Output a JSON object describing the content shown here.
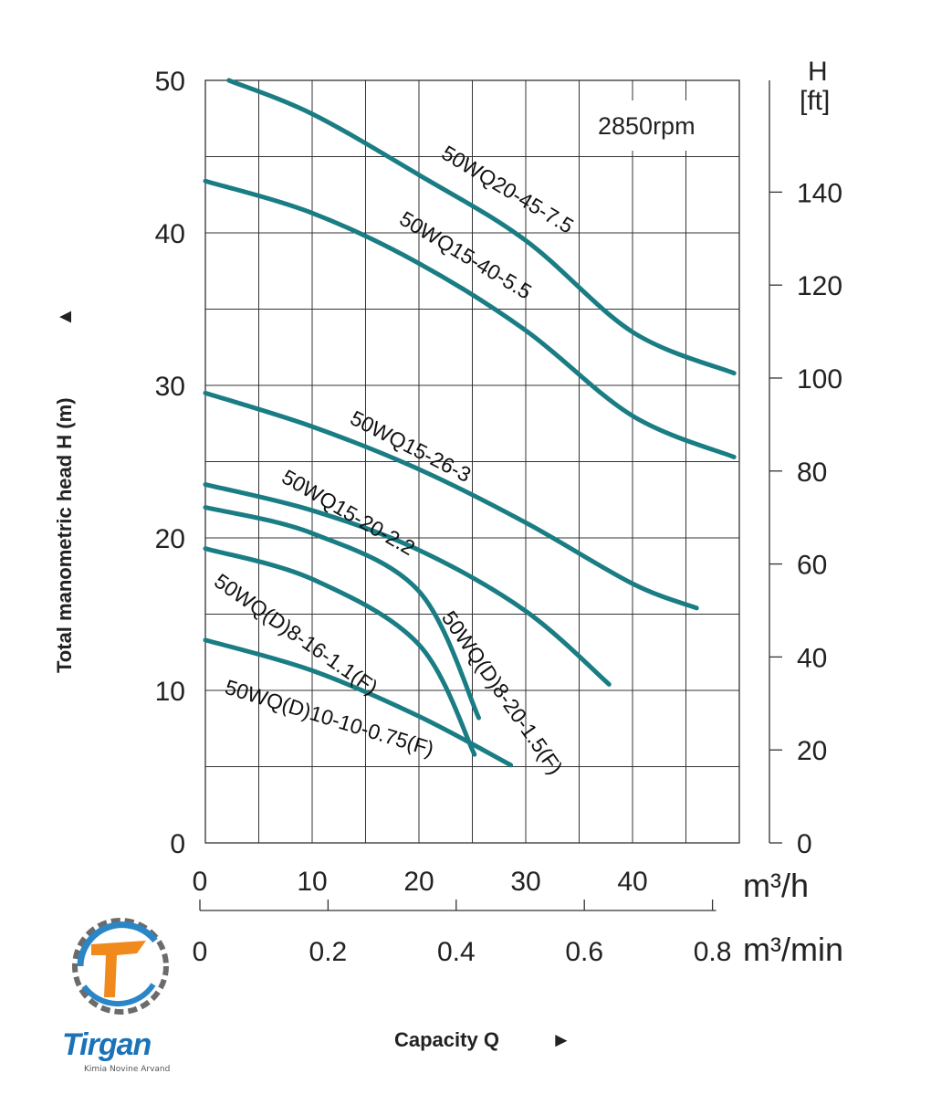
{
  "chart_data": {
    "type": "line",
    "rpm_label": "2850rpm",
    "ylabel": "Total manometric head H (m)",
    "ylabel_arrow": "▲",
    "xlabel": "Capacity Q",
    "xlabel_arrow": "►",
    "ylim": [
      0,
      50
    ],
    "xlim": [
      0,
      50
    ],
    "y_ticks": [
      "0",
      "10",
      "20",
      "30",
      "40",
      "50"
    ],
    "x_ticks": [
      "0",
      "10",
      "20",
      "30",
      "40"
    ],
    "x_unit": "m³/h",
    "y2_title": "H",
    "y2_unit": "[ft]",
    "y2_ticks": [
      "0",
      "20",
      "40",
      "60",
      "80",
      "100",
      "120",
      "140"
    ],
    "x2_ticks": [
      "0",
      "0.2",
      "0.4",
      "0.6",
      "0.8"
    ],
    "x2_unit": "m³/min",
    "grid": true,
    "color": "#1a7d84",
    "series": [
      {
        "name": "50WQ20-45-7.5",
        "points": [
          [
            2.2,
            50
          ],
          [
            10,
            47.8
          ],
          [
            20,
            43.8
          ],
          [
            30,
            39.5
          ],
          [
            40,
            33.5
          ],
          [
            49.5,
            30.8
          ]
        ]
      },
      {
        "name": "50WQ15-40-5.5",
        "points": [
          [
            0,
            43.4
          ],
          [
            10,
            41.3
          ],
          [
            20,
            38
          ],
          [
            30,
            33.6
          ],
          [
            40,
            28
          ],
          [
            49.5,
            25.3
          ]
        ]
      },
      {
        "name": "50WQ15-26-3",
        "points": [
          [
            0,
            29.5
          ],
          [
            10,
            27.3
          ],
          [
            20,
            24.5
          ],
          [
            30,
            21
          ],
          [
            40,
            17
          ],
          [
            46,
            15.4
          ]
        ]
      },
      {
        "name": "50WQ15-20-2.2",
        "points": [
          [
            0,
            23.5
          ],
          [
            10,
            21.8
          ],
          [
            20,
            19.2
          ],
          [
            30,
            15.2
          ],
          [
            37.8,
            10.4
          ]
        ]
      },
      {
        "name": "50WQ(D)8-20-1.5(F)",
        "points": [
          [
            0,
            22
          ],
          [
            10,
            20.3
          ],
          [
            20,
            16.5
          ],
          [
            25.6,
            8.2
          ]
        ]
      },
      {
        "name": "50WQ(D)8-16-1.1(F)",
        "points": [
          [
            0,
            19.3
          ],
          [
            10,
            17.3
          ],
          [
            20,
            13
          ],
          [
            25.2,
            5.8
          ]
        ]
      },
      {
        "name": "50WQ(D)10-10-0.75(F)",
        "points": [
          [
            0,
            13.3
          ],
          [
            10,
            11.3
          ],
          [
            20,
            8.3
          ],
          [
            28.6,
            5.1
          ]
        ]
      }
    ]
  },
  "brand": {
    "name": "Tirgan",
    "subtitle": "Kimia Novine Arvand"
  }
}
